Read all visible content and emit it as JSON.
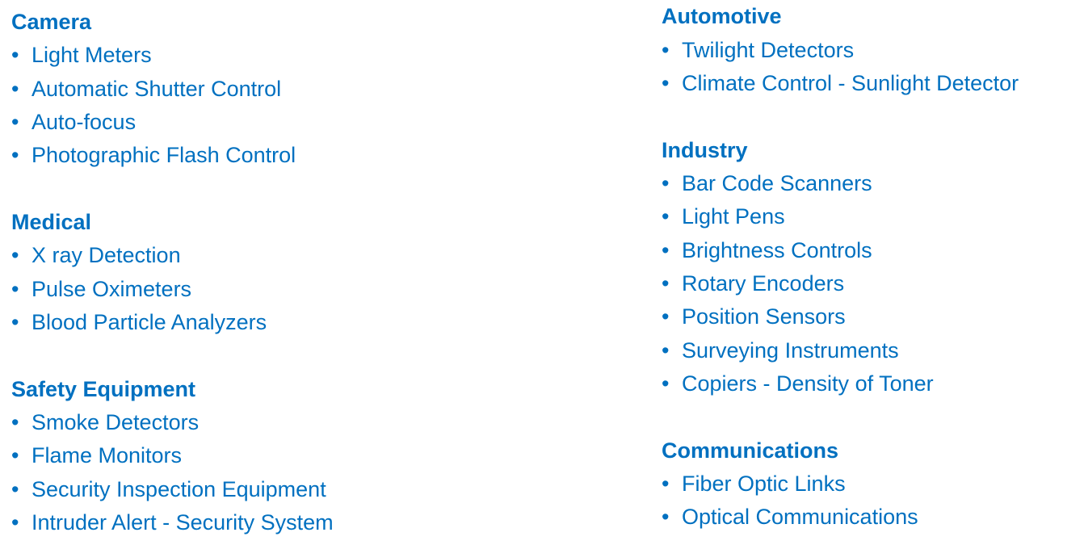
{
  "left_column": [
    {
      "title": "Camera",
      "items": [
        "Light Meters",
        "Automatic Shutter Control",
        "Auto-focus",
        "Photographic Flash Control"
      ]
    },
    {
      "title": "Medical",
      "items": [
        "X ray Detection",
        "Pulse Oximeters",
        "Blood Particle Analyzers"
      ]
    },
    {
      "title": "Safety Equipment",
      "items": [
        "Smoke Detectors",
        "Flame Monitors",
        "Security Inspection Equipment",
        "Intruder Alert - Security System"
      ]
    }
  ],
  "right_column": [
    {
      "title": "Automotive",
      "items": [
        "Twilight Detectors",
        "Climate Control - Sunlight Detector"
      ]
    },
    {
      "title": "Industry",
      "items": [
        "Bar Code Scanners",
        "Light Pens",
        "Brightness Controls",
        "Rotary Encoders",
        "Position Sensors",
        "Surveying Instruments",
        "Copiers - Density of Toner"
      ]
    },
    {
      "title": "Communications",
      "items": [
        "Fiber Optic Links",
        "Optical Communications"
      ]
    }
  ],
  "bullet_char": "•",
  "colors": {
    "text": "#0070C0",
    "background": "#FFFFFF"
  }
}
